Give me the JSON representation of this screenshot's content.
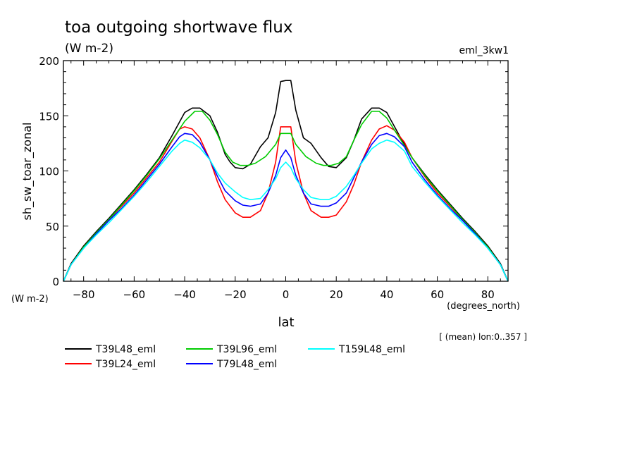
{
  "chart_data": {
    "type": "line",
    "title": "toa outgoing shortwave flux",
    "units": "(W m-2)",
    "experiment": "eml_3kw1",
    "ylabel": "sh_sw_toar_zonal",
    "yunits": "(W m-2)",
    "xlabel": "lat",
    "xunits": "(degrees_north)",
    "averaging_note": "[ (mean) lon:0..357 ]",
    "xlim": [
      -88,
      88
    ],
    "ylim": [
      0,
      200
    ],
    "x_ticks": [
      -80,
      -60,
      -40,
      -20,
      0,
      20,
      40,
      60,
      80
    ],
    "y_ticks": [
      0,
      50,
      100,
      150,
      200
    ],
    "grid": false,
    "legend_position": "bottom",
    "series": [
      {
        "name": "T39L48_eml",
        "color": "#000000",
        "points": [
          [
            -88,
            0
          ],
          [
            -85,
            16
          ],
          [
            -80,
            32
          ],
          [
            -75,
            45
          ],
          [
            -70,
            57
          ],
          [
            -65,
            70
          ],
          [
            -60,
            83
          ],
          [
            -55,
            97
          ],
          [
            -50,
            112
          ],
          [
            -45,
            132
          ],
          [
            -40,
            153
          ],
          [
            -37,
            157
          ],
          [
            -34,
            157
          ],
          [
            -30,
            150
          ],
          [
            -27,
            135
          ],
          [
            -24,
            115
          ],
          [
            -22,
            108
          ],
          [
            -20,
            103
          ],
          [
            -17,
            102
          ],
          [
            -14,
            106
          ],
          [
            -10,
            122
          ],
          [
            -7,
            130
          ],
          [
            -4,
            153
          ],
          [
            -2,
            181
          ],
          [
            0,
            182
          ],
          [
            2,
            182
          ],
          [
            4,
            155
          ],
          [
            7,
            130
          ],
          [
            10,
            125
          ],
          [
            14,
            112
          ],
          [
            17,
            104
          ],
          [
            20,
            103
          ],
          [
            24,
            112
          ],
          [
            27,
            128
          ],
          [
            30,
            147
          ],
          [
            34,
            157
          ],
          [
            37,
            157
          ],
          [
            40,
            153
          ],
          [
            45,
            132
          ],
          [
            50,
            112
          ],
          [
            55,
            97
          ],
          [
            60,
            83
          ],
          [
            65,
            70
          ],
          [
            70,
            57
          ],
          [
            75,
            45
          ],
          [
            80,
            32
          ],
          [
            85,
            16
          ],
          [
            88,
            0
          ]
        ]
      },
      {
        "name": "T39L24_eml",
        "color": "#ff0000",
        "points": [
          [
            -88,
            0
          ],
          [
            -85,
            15
          ],
          [
            -80,
            31
          ],
          [
            -75,
            44
          ],
          [
            -70,
            56
          ],
          [
            -65,
            68
          ],
          [
            -60,
            80
          ],
          [
            -55,
            94
          ],
          [
            -50,
            108
          ],
          [
            -45,
            127
          ],
          [
            -42,
            138
          ],
          [
            -40,
            140
          ],
          [
            -37,
            138
          ],
          [
            -34,
            130
          ],
          [
            -30,
            110
          ],
          [
            -27,
            90
          ],
          [
            -24,
            74
          ],
          [
            -20,
            62
          ],
          [
            -17,
            58
          ],
          [
            -14,
            58
          ],
          [
            -10,
            64
          ],
          [
            -7,
            80
          ],
          [
            -4,
            108
          ],
          [
            -2,
            140
          ],
          [
            0,
            140
          ],
          [
            2,
            140
          ],
          [
            4,
            108
          ],
          [
            7,
            80
          ],
          [
            10,
            64
          ],
          [
            14,
            58
          ],
          [
            17,
            58
          ],
          [
            20,
            60
          ],
          [
            24,
            72
          ],
          [
            27,
            88
          ],
          [
            30,
            108
          ],
          [
            34,
            128
          ],
          [
            37,
            138
          ],
          [
            40,
            141
          ],
          [
            43,
            137
          ],
          [
            47,
            126
          ],
          [
            50,
            112
          ],
          [
            55,
            95
          ],
          [
            60,
            80
          ],
          [
            65,
            68
          ],
          [
            70,
            56
          ],
          [
            75,
            44
          ],
          [
            80,
            31
          ],
          [
            85,
            15
          ],
          [
            88,
            0
          ]
        ]
      },
      {
        "name": "T39L96_eml",
        "color": "#00cc00",
        "points": [
          [
            -88,
            0
          ],
          [
            -85,
            15
          ],
          [
            -80,
            31
          ],
          [
            -75,
            44
          ],
          [
            -70,
            56
          ],
          [
            -65,
            69
          ],
          [
            -60,
            82
          ],
          [
            -55,
            96
          ],
          [
            -50,
            111
          ],
          [
            -45,
            128
          ],
          [
            -40,
            145
          ],
          [
            -36,
            154
          ],
          [
            -33,
            154
          ],
          [
            -30,
            146
          ],
          [
            -27,
            133
          ],
          [
            -24,
            117
          ],
          [
            -21,
            108
          ],
          [
            -18,
            105
          ],
          [
            -15,
            105
          ],
          [
            -12,
            107
          ],
          [
            -8,
            113
          ],
          [
            -4,
            124
          ],
          [
            -2,
            134
          ],
          [
            0,
            134
          ],
          [
            2,
            134
          ],
          [
            4,
            124
          ],
          [
            8,
            113
          ],
          [
            12,
            107
          ],
          [
            15,
            105
          ],
          [
            18,
            105
          ],
          [
            21,
            107
          ],
          [
            24,
            113
          ],
          [
            27,
            128
          ],
          [
            30,
            142
          ],
          [
            34,
            154
          ],
          [
            37,
            154
          ],
          [
            40,
            148
          ],
          [
            45,
            130
          ],
          [
            50,
            112
          ],
          [
            55,
            96
          ],
          [
            60,
            82
          ],
          [
            65,
            69
          ],
          [
            70,
            56
          ],
          [
            75,
            44
          ],
          [
            80,
            31
          ],
          [
            85,
            15
          ],
          [
            88,
            0
          ]
        ]
      },
      {
        "name": "T79L48_eml",
        "color": "#0000ff",
        "points": [
          [
            -88,
            0
          ],
          [
            -85,
            15
          ],
          [
            -80,
            30
          ],
          [
            -75,
            43
          ],
          [
            -70,
            55
          ],
          [
            -65,
            66
          ],
          [
            -60,
            78
          ],
          [
            -55,
            92
          ],
          [
            -50,
            106
          ],
          [
            -45,
            122
          ],
          [
            -42,
            131
          ],
          [
            -40,
            134
          ],
          [
            -37,
            133
          ],
          [
            -34,
            126
          ],
          [
            -30,
            110
          ],
          [
            -27,
            95
          ],
          [
            -24,
            82
          ],
          [
            -20,
            73
          ],
          [
            -17,
            69
          ],
          [
            -14,
            68
          ],
          [
            -10,
            70
          ],
          [
            -7,
            80
          ],
          [
            -4,
            96
          ],
          [
            -2,
            112
          ],
          [
            0,
            119
          ],
          [
            2,
            112
          ],
          [
            4,
            96
          ],
          [
            7,
            80
          ],
          [
            10,
            70
          ],
          [
            14,
            68
          ],
          [
            17,
            68
          ],
          [
            20,
            71
          ],
          [
            24,
            80
          ],
          [
            27,
            94
          ],
          [
            30,
            108
          ],
          [
            34,
            124
          ],
          [
            37,
            132
          ],
          [
            40,
            134
          ],
          [
            43,
            131
          ],
          [
            47,
            122
          ],
          [
            50,
            108
          ],
          [
            55,
            92
          ],
          [
            60,
            78
          ],
          [
            65,
            66
          ],
          [
            70,
            55
          ],
          [
            75,
            43
          ],
          [
            80,
            30
          ],
          [
            85,
            15
          ],
          [
            88,
            0
          ]
        ]
      },
      {
        "name": "T159L48_eml",
        "color": "#00ffff",
        "points": [
          [
            -88,
            0
          ],
          [
            -85,
            15
          ],
          [
            -80,
            30
          ],
          [
            -75,
            42
          ],
          [
            -70,
            53
          ],
          [
            -65,
            65
          ],
          [
            -60,
            77
          ],
          [
            -55,
            90
          ],
          [
            -50,
            104
          ],
          [
            -45,
            118
          ],
          [
            -42,
            125
          ],
          [
            -40,
            128
          ],
          [
            -37,
            126
          ],
          [
            -34,
            121
          ],
          [
            -30,
            110
          ],
          [
            -27,
            98
          ],
          [
            -24,
            89
          ],
          [
            -20,
            81
          ],
          [
            -17,
            76
          ],
          [
            -14,
            74
          ],
          [
            -10,
            75
          ],
          [
            -7,
            83
          ],
          [
            -4,
            93
          ],
          [
            -2,
            103
          ],
          [
            0,
            108
          ],
          [
            2,
            103
          ],
          [
            4,
            93
          ],
          [
            7,
            83
          ],
          [
            10,
            76
          ],
          [
            14,
            74
          ],
          [
            17,
            74
          ],
          [
            20,
            77
          ],
          [
            24,
            86
          ],
          [
            27,
            96
          ],
          [
            30,
            107
          ],
          [
            34,
            120
          ],
          [
            37,
            125
          ],
          [
            40,
            128
          ],
          [
            43,
            126
          ],
          [
            47,
            118
          ],
          [
            50,
            104
          ],
          [
            55,
            90
          ],
          [
            60,
            77
          ],
          [
            65,
            65
          ],
          [
            70,
            53
          ],
          [
            75,
            42
          ],
          [
            80,
            30
          ],
          [
            85,
            15
          ],
          [
            88,
            0
          ]
        ]
      }
    ]
  }
}
